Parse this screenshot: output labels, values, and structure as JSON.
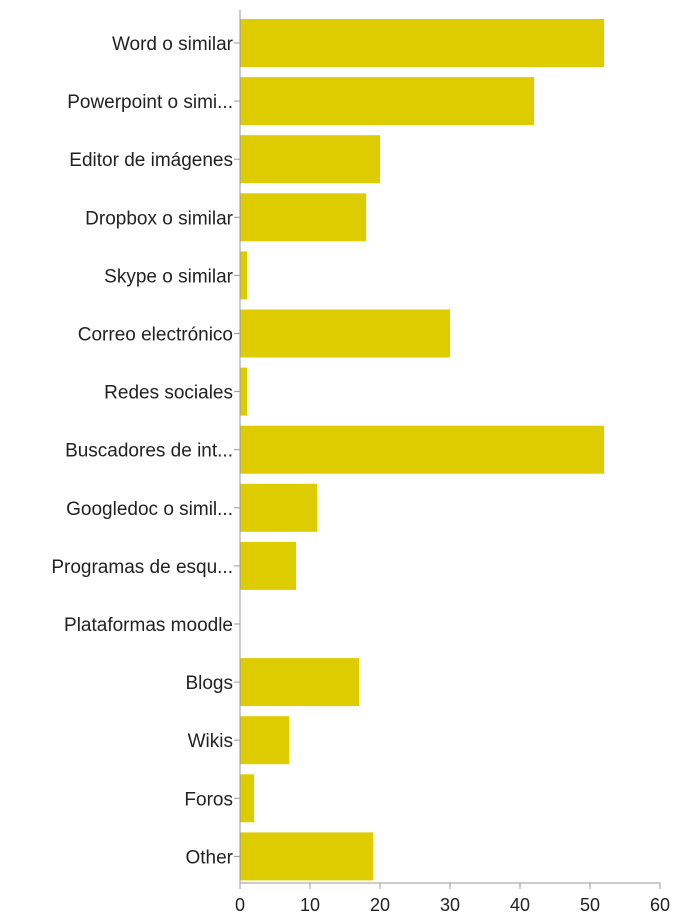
{
  "chart_data": {
    "type": "bar",
    "orientation": "horizontal",
    "categories": [
      "Word o similar",
      "Powerpoint o simi...",
      "Editor de imágenes",
      "Dropbox o similar",
      "Skype o similar",
      "Correo electrónico",
      "Redes sociales",
      "Buscadores de int...",
      "Googledoc o simil...",
      "Programas de esqu...",
      "Plataformas moodle",
      "Blogs",
      "Wikis",
      "Foros",
      "Other"
    ],
    "values": [
      52,
      42,
      20,
      18,
      1,
      30,
      1,
      52,
      11,
      8,
      0,
      17,
      7,
      2,
      19
    ],
    "xlim": [
      0,
      60
    ],
    "xticks": [
      "0",
      "10",
      "20",
      "30",
      "40",
      "50",
      "60"
    ],
    "grid": false,
    "legend": "none",
    "colors": {
      "bar": "#ddcc00",
      "axis": "#999999",
      "text": "#222222"
    }
  }
}
